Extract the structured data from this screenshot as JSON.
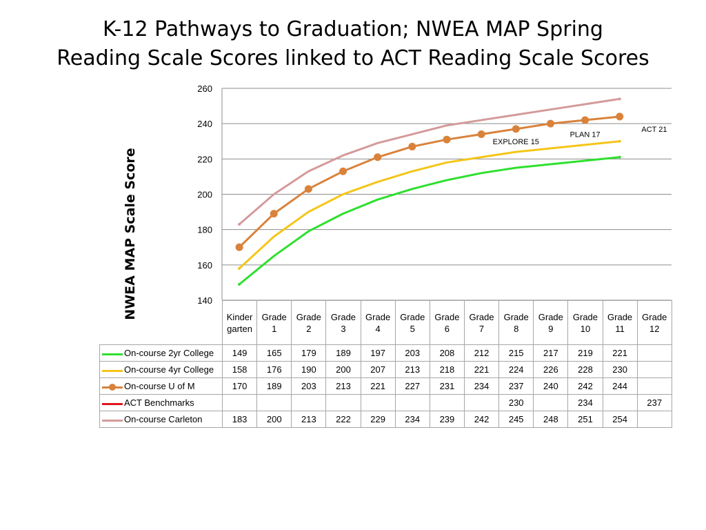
{
  "title_lines": [
    "K-12 Pathways to Graduation; NWEA MAP Spring",
    "Reading Scale Scores linked to ACT Reading Scale Scores"
  ],
  "chart_data": {
    "type": "line",
    "title": "K-12 Pathways to Graduation; NWEA MAP Spring Reading Scale Scores linked to ACT Reading Scale Scores",
    "xlabel": "",
    "ylabel": "NWEA MAP Scale Score",
    "ylim": [
      140,
      260
    ],
    "yticks": [
      140,
      160,
      180,
      200,
      220,
      240,
      260
    ],
    "grid": true,
    "legend": "data-table",
    "categories": [
      "Kindergarten",
      "Grade 1",
      "Grade 2",
      "Grade 3",
      "Grade 4",
      "Grade 5",
      "Grade 6",
      "Grade 7",
      "Grade 8",
      "Grade 9",
      "Grade 10",
      "Grade 11",
      "Grade 12"
    ],
    "series": [
      {
        "name": "On-course 2yr College",
        "color": "#2ee02e",
        "marker": false,
        "values": [
          149,
          165,
          179,
          189,
          197,
          203,
          208,
          212,
          215,
          217,
          219,
          221,
          null
        ]
      },
      {
        "name": "On-course 4yr College",
        "color": "#f5c518",
        "marker": false,
        "values": [
          158,
          176,
          190,
          200,
          207,
          213,
          218,
          221,
          224,
          226,
          228,
          230,
          null
        ]
      },
      {
        "name": "On-course U of M",
        "color": "#d9823b",
        "marker": true,
        "values": [
          170,
          189,
          203,
          213,
          221,
          227,
          231,
          234,
          237,
          240,
          242,
          244,
          null
        ]
      },
      {
        "name": "ACT Benchmarks",
        "color": "#e0141e",
        "marker": false,
        "values": [
          null,
          null,
          null,
          null,
          null,
          null,
          null,
          null,
          230,
          null,
          234,
          null,
          237
        ]
      },
      {
        "name": "On-course Carleton",
        "color": "#d49a9a",
        "marker": false,
        "values": [
          183,
          200,
          213,
          222,
          229,
          234,
          239,
          242,
          245,
          248,
          251,
          254,
          null
        ]
      }
    ],
    "annotations": [
      {
        "text": "EXPLORE 15",
        "x": "Grade 8",
        "y": 230
      },
      {
        "text": "PLAN 17",
        "x": "Grade 10",
        "y": 234
      },
      {
        "text": "ACT 21",
        "x": "Grade 12",
        "y": 237
      }
    ]
  }
}
